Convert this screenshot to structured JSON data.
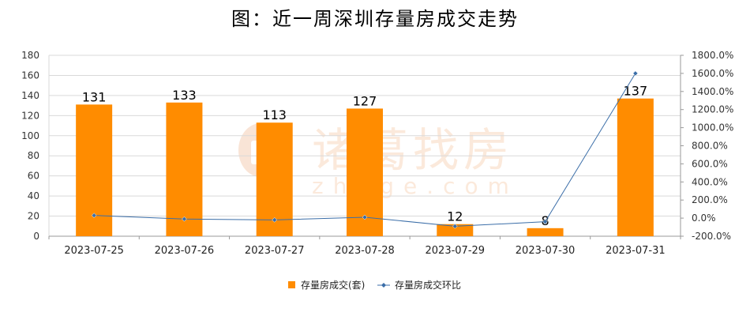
{
  "title": "图：近一周深圳存量房成交走势",
  "watermark": {
    "text_cn": "诸葛找房",
    "text_en": "zhuge.com"
  },
  "colors": {
    "bar": "#ff8c00",
    "line": "#3b6ea8",
    "grid": "#d9d9d9",
    "axis": "#999999"
  },
  "chart_data": {
    "type": "bar",
    "categories": [
      "2023-07-25",
      "2023-07-26",
      "2023-07-27",
      "2023-07-28",
      "2023-07-29",
      "2023-07-30",
      "2023-07-31"
    ],
    "series": [
      {
        "name": "存量房成交(套)",
        "type": "bar",
        "axis": "left",
        "values": [
          131,
          133,
          113,
          127,
          12,
          8,
          137
        ]
      },
      {
        "name": "存量房成交环比",
        "type": "line",
        "axis": "right",
        "values": [
          30,
          -10,
          -20,
          10,
          -90,
          -40,
          1600
        ]
      }
    ],
    "y_left": {
      "min": 0,
      "max": 180,
      "ticks": [
        "0",
        "20",
        "40",
        "60",
        "80",
        "100",
        "120",
        "140",
        "160",
        "180"
      ]
    },
    "y_right": {
      "min": -200,
      "max": 1800,
      "ticks": [
        "-200.0%",
        "0.0%",
        "200.0%",
        "400.0%",
        "600.0%",
        "800.0%",
        "1000.0%",
        "1200.0%",
        "1400.0%",
        "1600.0%",
        "1800.0%"
      ]
    },
    "grid": true,
    "legend": "bottom"
  }
}
